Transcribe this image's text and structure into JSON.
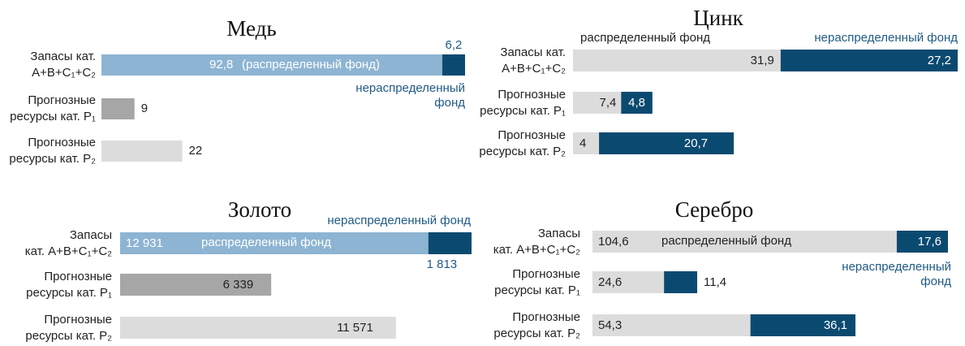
{
  "chart_data": [
    {
      "type": "bar",
      "title": "Медь",
      "categories": [
        [
          "Запасы кат.",
          "A+B+C₁+C₂"
        ],
        [
          "Прогнозные",
          "ресурсы кат. P₁"
        ],
        [
          "Прогнозные",
          "ресурсы кат. P₂"
        ]
      ],
      "series": [
        {
          "name": "(распределенный фонд)",
          "colors": [
            "#8db4d3",
            "#a6a6a6",
            "#dcdcdc"
          ],
          "values": [
            92.8,
            9,
            22
          ],
          "value_labels": [
            "92,8",
            "9",
            "22"
          ]
        },
        {
          "name": "нераспределенный фонд",
          "colors": [
            "#0b4a70",
            "#0b4a70",
            "#0b4a70"
          ],
          "values": [
            6.2,
            null,
            null
          ],
          "value_labels": [
            "6,2",
            null,
            null
          ]
        }
      ]
    },
    {
      "type": "bar",
      "title": "Цинк",
      "categories": [
        [
          "Запасы кат.",
          "A+B+C₁+C₂"
        ],
        [
          "Прогнозные",
          "ресурсы кат. P₁"
        ],
        [
          "Прогнозные",
          "ресурсы кат. P₂"
        ]
      ],
      "series": [
        {
          "name": "распределенный фонд",
          "colors": [
            "#dcdcdc",
            "#dcdcdc",
            "#dcdcdc"
          ],
          "values": [
            31.9,
            7.4,
            4
          ],
          "value_labels": [
            "31,9",
            "7,4",
            "4"
          ]
        },
        {
          "name": "нераспределенный фонд",
          "colors": [
            "#0b4a70",
            "#0b4a70",
            "#0b4a70"
          ],
          "values": [
            27.2,
            4.8,
            20.7
          ],
          "value_labels": [
            "27,2",
            "4,8",
            "20,7"
          ]
        }
      ]
    },
    {
      "type": "bar",
      "title": "Золото",
      "categories": [
        [
          "Запасы",
          "кат. A+B+C₁+C₂"
        ],
        [
          "Прогнозные",
          "ресурсы кат. P₁"
        ],
        [
          "Прогнозные",
          "ресурсы кат. P₂"
        ]
      ],
      "series": [
        {
          "name": "распределенный фонд",
          "colors": [
            "#8db4d3",
            "#a6a6a6",
            "#dcdcdc"
          ],
          "values": [
            12931,
            6339,
            11571
          ],
          "value_labels": [
            "12 931",
            "6 339",
            "11 571"
          ]
        },
        {
          "name": "нераспределенный фонд",
          "colors": [
            "#0b4a70",
            "#0b4a70",
            "#0b4a70"
          ],
          "values": [
            1813,
            null,
            null
          ],
          "value_labels": [
            "1 813",
            null,
            null
          ]
        }
      ]
    },
    {
      "type": "bar",
      "title": "Серебро",
      "categories": [
        [
          "Запасы",
          "кат. A+B+C₁+C₂"
        ],
        [
          "Прогнозные",
          "ресурсы кат. P₁"
        ],
        [
          "Прогнозные",
          "ресурсы кат. P₂"
        ]
      ],
      "series": [
        {
          "name": "распределенный фонд",
          "colors": [
            "#dcdcdc",
            "#dcdcdc",
            "#dcdcdc"
          ],
          "values": [
            104.6,
            24.6,
            54.3
          ],
          "value_labels": [
            "104,6",
            "24,6",
            "54,3"
          ]
        },
        {
          "name": "нераспределенный фонд",
          "colors": [
            "#0b4a70",
            "#0b4a70",
            "#0b4a70"
          ],
          "values": [
            17.6,
            11.4,
            36.1
          ],
          "value_labels": [
            "17,6",
            "11,4",
            "36,1"
          ]
        }
      ]
    }
  ]
}
